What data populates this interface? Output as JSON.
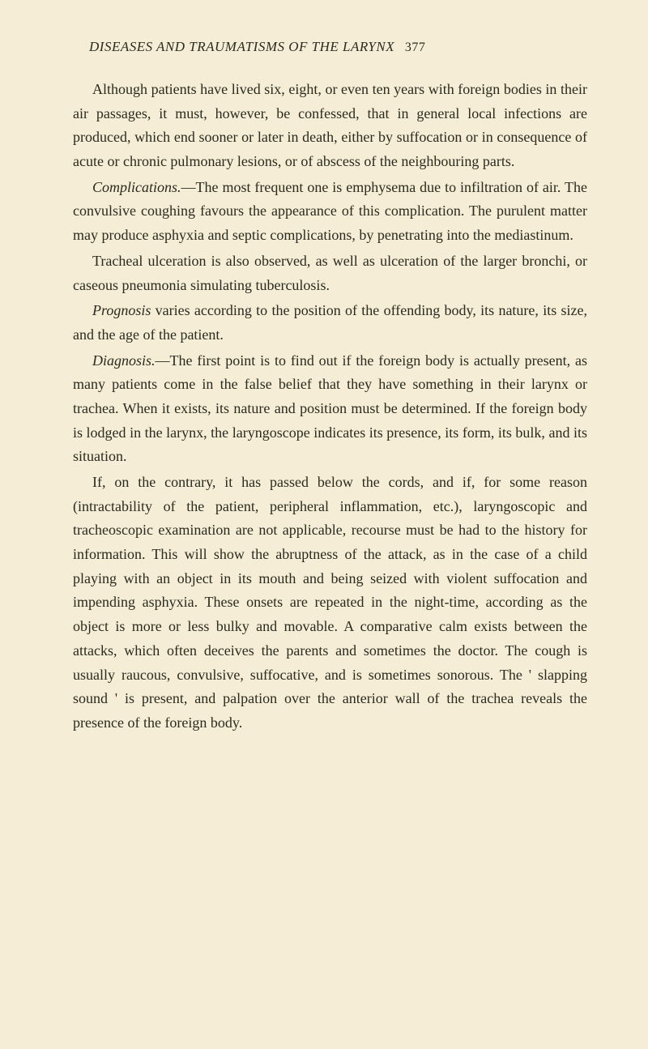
{
  "header": {
    "title": "DISEASES AND TRAUMATISMS OF THE LARYNX",
    "page_number": "377"
  },
  "paragraphs": {
    "p1": "Although patients have lived six, eight, or even ten years with foreign bodies in their air passages, it must, however, be confessed, that in general local infections are produced, which end sooner or later in death, either by suffocation or in consequence of acute or chronic pulmonary lesions, or of abscess of the neighbouring parts.",
    "p2_label": "Complications.",
    "p2_text": "—The most frequent one is emphysema due to infiltration of air. The convulsive coughing favours the appearance of this complication. The purulent matter may produce asphyxia and septic complications, by penetrating into the mediastinum.",
    "p3": "Tracheal ulceration is also observed, as well as ulceration of the larger bronchi, or caseous pneumonia simulating tuberculosis.",
    "p4_label": "Prognosis",
    "p4_text": " varies according to the position of the offending body, its nature, its size, and the age of the patient.",
    "p5_label": "Diagnosis.",
    "p5_text": "—The first point is to find out if the foreign body is actually present, as many patients come in the false belief that they have something in their larynx or trachea. When it exists, its nature and position must be determined. If the foreign body is lodged in the larynx, the laryngoscope indicates its presence, its form, its bulk, and its situation.",
    "p6": "If, on the contrary, it has passed below the cords, and if, for some reason (intractability of the patient, peripheral inflammation, etc.), laryngoscopic and tracheoscopic examination are not applicable, recourse must be had to the history for information. This will show the abruptness of the attack, as in the case of a child playing with an object in its mouth and being seized with violent suffocation and impending asphyxia. These onsets are repeated in the night-time, according as the object is more or less bulky and movable. A comparative calm exists between the attacks, which often deceives the parents and sometimes the doctor. The cough is usually raucous, convulsive, suffocative, and is sometimes sonorous. The ' slapping sound ' is present, and palpation over the anterior wall of the trachea reveals the presence of the foreign body."
  }
}
